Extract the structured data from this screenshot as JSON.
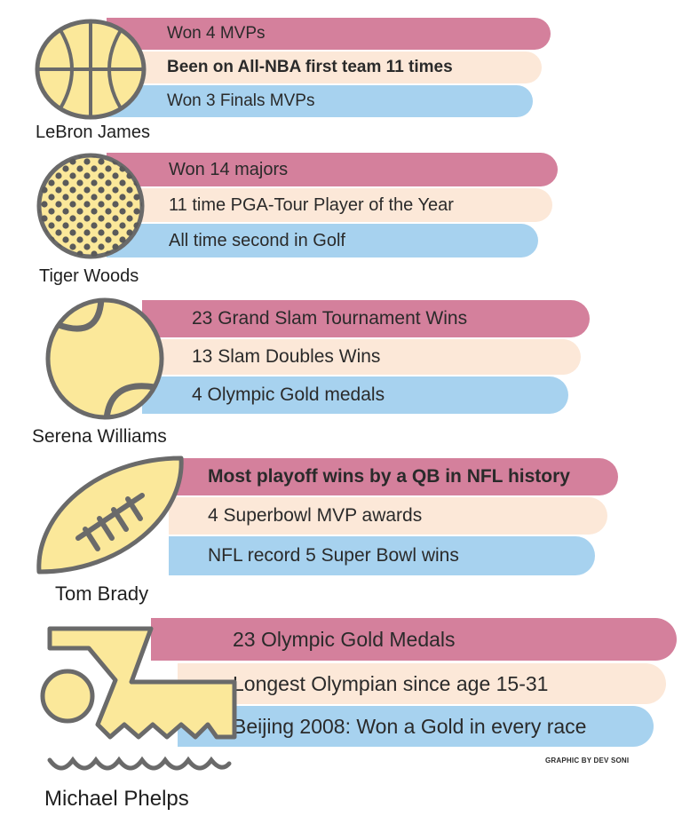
{
  "colors": {
    "pink": "#d4809c",
    "cream": "#fce8d8",
    "blue": "#a7d2ef",
    "icon_fill": "#fbe89a",
    "icon_stroke": "#6a6a6a"
  },
  "athletes": [
    {
      "name": "LeBron James",
      "icon": "basketball-icon",
      "facts": [
        "Won 4 MVPs",
        "Been on All-NBA first team 11 times",
        "Won 3 Finals MVPs"
      ]
    },
    {
      "name": "Tiger Woods",
      "icon": "golf-ball-icon",
      "facts": [
        "Won 14 majors",
        "11 time PGA-Tour Player of the Year",
        "All time second in Golf"
      ]
    },
    {
      "name": "Serena Williams",
      "icon": "tennis-ball-icon",
      "facts": [
        "23 Grand Slam Tournament Wins",
        "13 Slam Doubles Wins",
        "4 Olympic Gold medals"
      ]
    },
    {
      "name": "Tom Brady",
      "icon": "football-icon",
      "facts": [
        "Most playoff wins by a QB in NFL history",
        "4 Superbowl MVP awards",
        "NFL record 5 Super Bowl wins"
      ]
    },
    {
      "name": "Michael Phelps",
      "icon": "swimmer-icon",
      "facts": [
        "23 Olympic Gold Medals",
        "Longest Olympian since age 15-31",
        "Beijing 2008: Won a Gold in every race"
      ]
    }
  ],
  "credit": "GRAPHIC BY DEV SONI"
}
